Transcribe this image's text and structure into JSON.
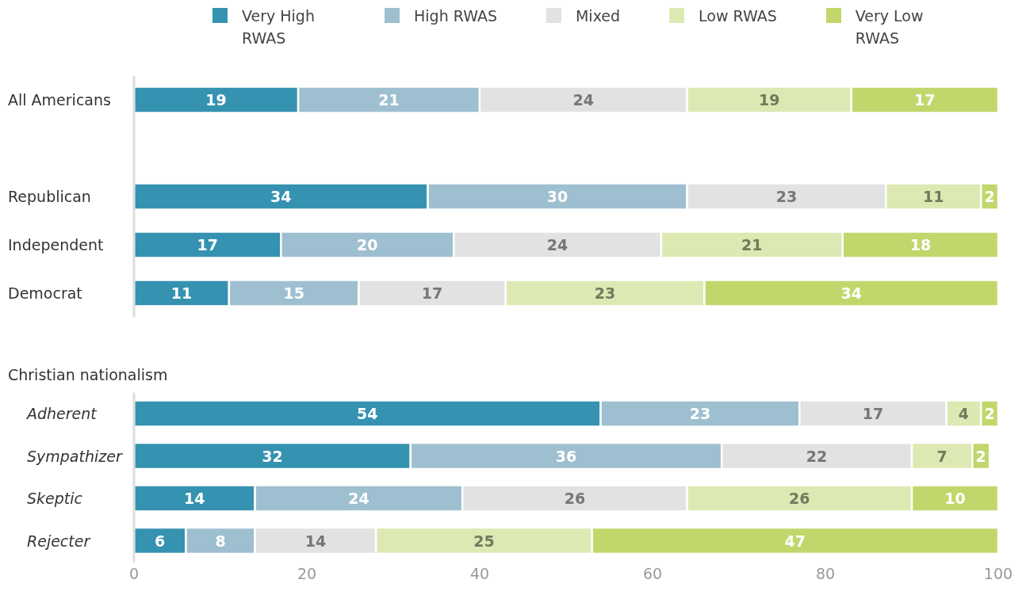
{
  "chart_data": [
    {
      "type": "bar",
      "orientation": "horizontal",
      "stacked": true,
      "categories": [
        "All Americans",
        null,
        "Republican",
        "Independent",
        "Democrat"
      ],
      "series": [
        {
          "name": "Very High RWAS",
          "color": "#3592b0",
          "values": [
            19,
            null,
            34,
            17,
            11
          ]
        },
        {
          "name": "High RWAS",
          "color": "#9ebfd0",
          "values": [
            21,
            null,
            30,
            20,
            15
          ]
        },
        {
          "name": "Mixed",
          "color": "#e2e2e2",
          "values": [
            24,
            null,
            23,
            24,
            17
          ]
        },
        {
          "name": "Low RWAS",
          "color": "#dde9b3",
          "values": [
            19,
            null,
            11,
            21,
            23
          ]
        },
        {
          "name": "Very Low RWAS",
          "color": "#c2d76b",
          "values": [
            17,
            null,
            2,
            18,
            34
          ]
        }
      ],
      "xlim": [
        0,
        100
      ],
      "tick_labels": "y",
      "data_labels": true,
      "legend": "top"
    },
    {
      "type": "bar",
      "orientation": "horizontal",
      "stacked": true,
      "title": "Christian nationalism",
      "categories": [
        "Adherent",
        "Sympathizer",
        "Skeptic",
        "Rejecter"
      ],
      "series": [
        {
          "color": "#3592b0",
          "values": [
            54,
            32,
            14,
            6
          ]
        },
        {
          "color": "#9ebfd0",
          "values": [
            23,
            36,
            24,
            8
          ]
        },
        {
          "color": "#e2e2e2",
          "values": [
            17,
            22,
            26,
            14
          ]
        },
        {
          "color": "#dde9b3",
          "values": [
            4,
            7,
            26,
            25
          ]
        },
        {
          "color": "#c2d76b",
          "values": [
            2,
            2,
            10,
            47
          ]
        }
      ],
      "xlim": [
        0,
        100
      ],
      "xticks": [
        0,
        20,
        40,
        60,
        80,
        100
      ],
      "data_labels": true
    }
  ]
}
